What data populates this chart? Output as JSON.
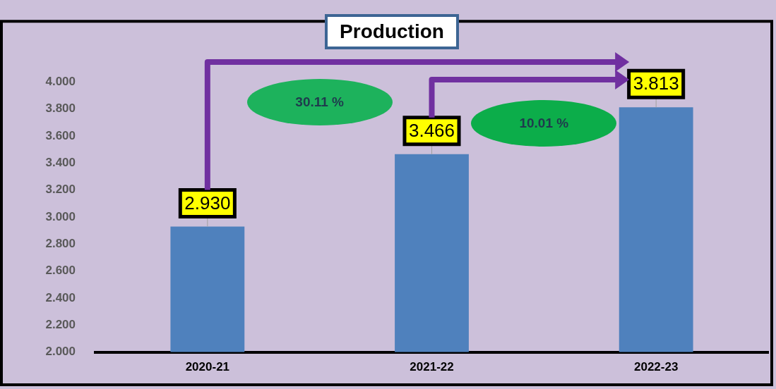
{
  "chart_data": {
    "type": "bar",
    "title": "Production",
    "categories": [
      "2020-21",
      "2021-22",
      "2022-23"
    ],
    "values": [
      2.93,
      3.466,
      3.813
    ],
    "value_labels": [
      "2.930",
      "3.466",
      "3.813"
    ],
    "color": "#4f81bd",
    "ylim": [
      2,
      4.45
    ],
    "yticks": [
      {
        "value": 2,
        "label": "2.000"
      },
      {
        "value": 2.2,
        "label": "2.200"
      },
      {
        "value": 2.4,
        "label": "2.400"
      },
      {
        "value": 2.6,
        "label": "2.600"
      },
      {
        "value": 2.8,
        "label": "2.800"
      },
      {
        "value": 3,
        "label": "3.000"
      },
      {
        "value": 3.2,
        "label": "3.200"
      },
      {
        "value": 3.4,
        "label": "3.400"
      },
      {
        "value": 3.6,
        "label": "3.600"
      },
      {
        "value": 3.8,
        "label": "3.800"
      },
      {
        "value": 4,
        "label": "4.000"
      }
    ],
    "annotations": [
      "30.11 %",
      "10.01 %"
    ],
    "grid": false,
    "legend": false
  }
}
